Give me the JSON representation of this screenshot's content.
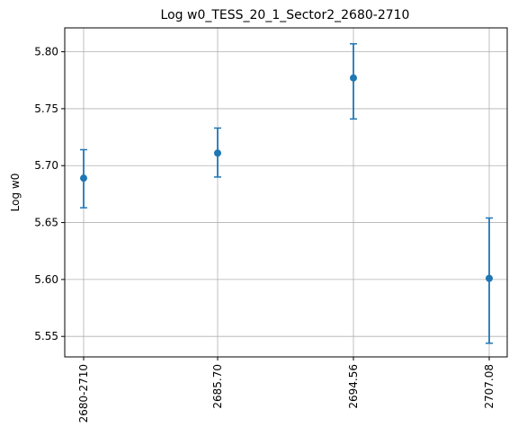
{
  "chart_data": {
    "type": "scatter",
    "title": "Log w0_TESS_20_1_Sector2_2680-2710",
    "xlabel": "",
    "ylabel": "Log w0",
    "categories": [
      "2680-2710",
      "2685.70",
      "2694.56",
      "2707.08"
    ],
    "values": [
      5.689,
      5.711,
      5.777,
      5.601
    ],
    "err_low": [
      5.663,
      5.69,
      5.741,
      5.544
    ],
    "err_high": [
      5.714,
      5.733,
      5.807,
      5.654
    ],
    "ylim": [
      5.532,
      5.821
    ],
    "yticks": [
      5.55,
      5.6,
      5.65,
      5.7,
      5.75,
      5.8
    ],
    "grid": true,
    "color": "#1f77b4"
  }
}
